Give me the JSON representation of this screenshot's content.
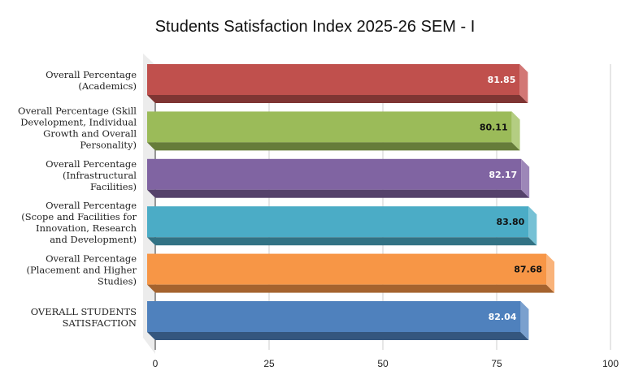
{
  "chart_data": {
    "type": "bar",
    "orientation": "horizontal",
    "style": "3d",
    "title": "Students Satisfaction Index 2025-26 SEM - I",
    "xlabel": "",
    "ylabel": "",
    "xlim": [
      0,
      100
    ],
    "ticks": [
      "0",
      "25",
      "50",
      "75",
      "100"
    ],
    "tick_values": [
      0,
      25,
      50,
      75,
      100
    ],
    "grid": true,
    "legend": "none",
    "categories": [
      [
        "Overall Percentage",
        "(Academics)"
      ],
      [
        "Overall Percentage (Skill",
        "Development, Individual",
        "Growth and Overall",
        "Personality)"
      ],
      [
        "Overall Percentage",
        "(Infrastructural",
        "Facilities)"
      ],
      [
        "Overall Percentage",
        "(Scope and Facilities for",
        "Innovation, Research",
        "and Development)"
      ],
      [
        "Overall Percentage",
        "(Placement and Higher",
        "Studies)"
      ],
      [
        "OVERALL STUDENTS",
        "SATISFACTION"
      ]
    ],
    "values": [
      81.85,
      80.11,
      82.17,
      83.8,
      87.68,
      82.04
    ],
    "value_labels": [
      "81.85",
      "80.11",
      "82.17",
      "83.80",
      "87.68",
      "82.04"
    ],
    "colors": [
      {
        "front": "#c0504d",
        "bottom": "#7f3533",
        "side": "#d27775",
        "label": "#ffffff"
      },
      {
        "front": "#9bbb59",
        "bottom": "#667c3a",
        "side": "#b4cd82",
        "label": "#111111"
      },
      {
        "front": "#8064a2",
        "bottom": "#55426b",
        "side": "#9d87b8",
        "label": "#ffffff"
      },
      {
        "front": "#4bacc6",
        "bottom": "#327284",
        "side": "#76c1d5",
        "label": "#111111"
      },
      {
        "front": "#f79646",
        "bottom": "#a5632e",
        "side": "#f9b37a",
        "label": "#111111"
      },
      {
        "front": "#4f81bd",
        "bottom": "#34567e",
        "side": "#7aa0ce",
        "label": "#ffffff"
      }
    ]
  }
}
